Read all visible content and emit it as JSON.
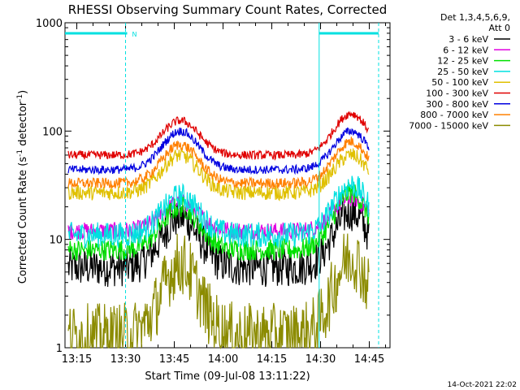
{
  "chart_data": {
    "type": "line",
    "title": "RHESSI Observing Summary Count Rates, Corrected",
    "xlabel": "Start Time (09-Jul-08 13:11:22)",
    "ylabel_main": "Corrected Count Rate (s",
    "ylabel_sup1": "-1",
    "ylabel_mid": " detector",
    "ylabel_sup2": "-1",
    "ylabel_end": ")",
    "yscale": "log",
    "ylim": [
      1,
      1000
    ],
    "xlim_minutes": [
      0,
      100
    ],
    "x_ticks": [
      "13:15",
      "13:30",
      "13:45",
      "14:00",
      "14:15",
      "14:30",
      "14:45"
    ],
    "x_tick_minutes": [
      3.63,
      18.63,
      33.63,
      48.63,
      63.63,
      78.63,
      93.63
    ],
    "y_ticks": [
      "1",
      "10",
      "100",
      "1000"
    ],
    "y_tick_values": [
      1,
      10,
      100,
      1000
    ],
    "legend_header": [
      "Det 1,3,4,5,6,9,",
      "Att 0"
    ],
    "legend_placement": "right",
    "night_flag_label": "N",
    "timestamp": "14-Oct-2021 22:02",
    "series": [
      {
        "name": "3 - 6 keV",
        "color": "#000000",
        "base": 5.5,
        "peak1": 16,
        "peak2": 18,
        "noise": 0.18
      },
      {
        "name": "6 - 12 keV",
        "color": "#e000e0",
        "base": 12,
        "peak1": 22,
        "peak2": 24,
        "noise": 0.08
      },
      {
        "name": "12 - 25 keV",
        "color": "#00e000",
        "base": 8,
        "peak1": 20,
        "peak2": 27,
        "noise": 0.1
      },
      {
        "name": "25 - 50 keV",
        "color": "#00e0e0",
        "base": 11,
        "peak1": 25,
        "peak2": 32,
        "noise": 0.12
      },
      {
        "name": "50 - 100 keV",
        "color": "#e0c000",
        "base": 27,
        "peak1": 60,
        "peak2": 60,
        "noise": 0.07
      },
      {
        "name": "100 - 300 keV",
        "color": "#e00000",
        "base": 60,
        "peak1": 125,
        "peak2": 145,
        "noise": 0.04
      },
      {
        "name": "300 - 800 keV",
        "color": "#0000e0",
        "base": 44,
        "peak1": 100,
        "peak2": 100,
        "noise": 0.04
      },
      {
        "name": "800 - 7000 keV",
        "color": "#ff8000",
        "base": 33,
        "peak1": 75,
        "peak2": 80,
        "noise": 0.05
      },
      {
        "name": "7000 - 15000 keV",
        "color": "#8b8b00",
        "base": 1.3,
        "peak1": 6,
        "peak2": 7,
        "noise": 0.3
      }
    ]
  }
}
